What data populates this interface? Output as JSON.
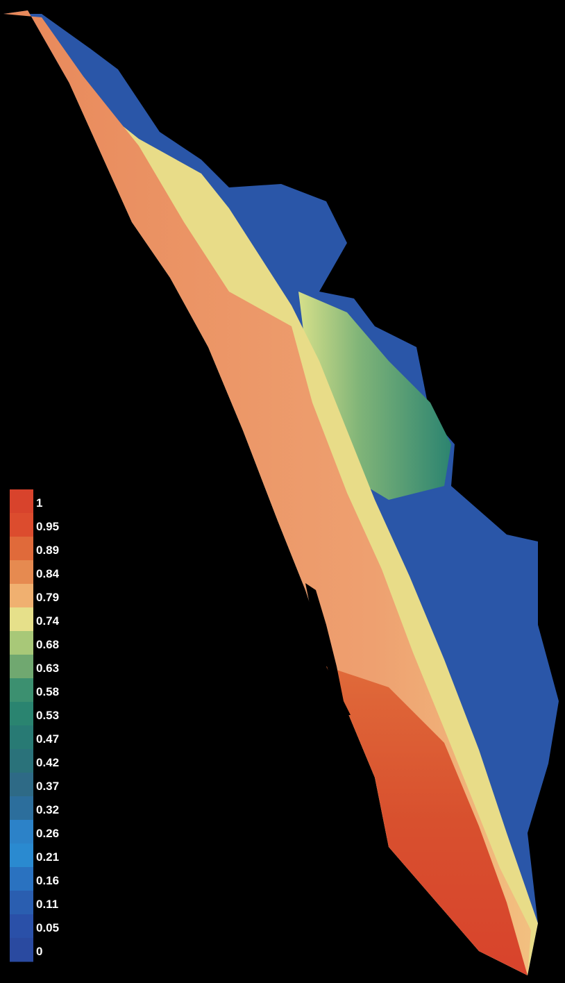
{
  "legend": {
    "ticks": [
      1,
      0.95,
      0.89,
      0.84,
      0.79,
      0.74,
      0.68,
      0.63,
      0.58,
      0.53,
      0.47,
      0.42,
      0.37,
      0.32,
      0.26,
      0.21,
      0.16,
      0.11,
      0.05,
      0
    ],
    "colors": [
      "#d8432c",
      "#dc4c2e",
      "#e06a3a",
      "#e68a50",
      "#f0b070",
      "#e6e08a",
      "#a8c878",
      "#70a870",
      "#3c9070",
      "#2a8470",
      "#287a74",
      "#2a727a",
      "#2e6a86",
      "#2c6e9c",
      "#2c82c8",
      "#2a8ad0",
      "#2a72c0",
      "#2a5eb0",
      "#2a50a8",
      "#2a4aa0"
    ]
  }
}
